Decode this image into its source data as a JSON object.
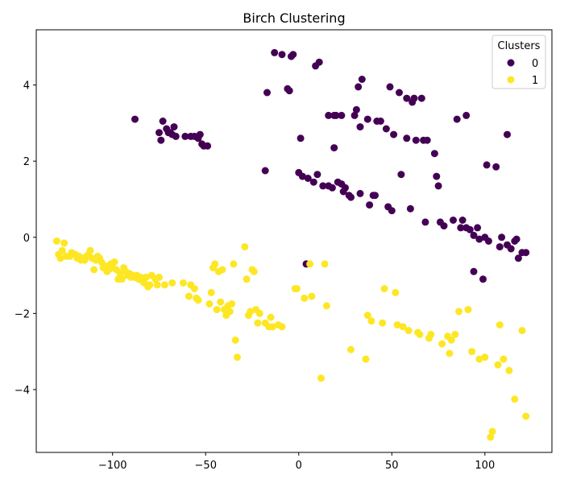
{
  "chart_data": {
    "type": "scatter",
    "title": "Birch Clustering",
    "xlabel": "",
    "ylabel": "",
    "xlim": [
      -141,
      136
    ],
    "ylim": [
      -5.65,
      5.45
    ],
    "x_ticks": [
      -100,
      -50,
      0,
      50,
      100
    ],
    "y_ticks": [
      -4,
      -2,
      0,
      2,
      4
    ],
    "grid": false,
    "legend": {
      "title": "Clusters",
      "placement": "top-right",
      "entries": [
        {
          "label": "0",
          "color": "#440154"
        },
        {
          "label": "1",
          "color": "#fde725"
        }
      ]
    },
    "series": [
      {
        "name": "0",
        "color": "#440154",
        "points": [
          [
            -88,
            3.1
          ],
          [
            -75,
            2.75
          ],
          [
            -74,
            2.55
          ],
          [
            -73,
            3.05
          ],
          [
            -71,
            2.85
          ],
          [
            -70,
            2.75
          ],
          [
            -69,
            2.75
          ],
          [
            -68,
            2.7
          ],
          [
            -67,
            2.9
          ],
          [
            -66,
            2.65
          ],
          [
            -61,
            2.65
          ],
          [
            -58,
            2.65
          ],
          [
            -56,
            2.65
          ],
          [
            -54,
            2.6
          ],
          [
            -53,
            2.7
          ],
          [
            -52,
            2.45
          ],
          [
            -51,
            2.4
          ],
          [
            -49,
            2.4
          ],
          [
            -17,
            3.8
          ],
          [
            -13,
            4.85
          ],
          [
            -9,
            4.8
          ],
          [
            -6,
            3.9
          ],
          [
            -5,
            3.85
          ],
          [
            -4,
            4.75
          ],
          [
            -3,
            4.8
          ],
          [
            9,
            4.5
          ],
          [
            11,
            4.6
          ],
          [
            16,
            3.2
          ],
          [
            19,
            3.2
          ],
          [
            20,
            3.2
          ],
          [
            23,
            3.2
          ],
          [
            30,
            3.2
          ],
          [
            31,
            3.35
          ],
          [
            32,
            3.95
          ],
          [
            33,
            2.9
          ],
          [
            34,
            4.15
          ],
          [
            37,
            3.1
          ],
          [
            42,
            3.05
          ],
          [
            44,
            3.05
          ],
          [
            47,
            2.85
          ],
          [
            49,
            3.95
          ],
          [
            51,
            2.7
          ],
          [
            54,
            3.8
          ],
          [
            58,
            3.65
          ],
          [
            58,
            2.6
          ],
          [
            61,
            3.55
          ],
          [
            62,
            3.65
          ],
          [
            63,
            2.55
          ],
          [
            66,
            3.65
          ],
          [
            67,
            2.55
          ],
          [
            69,
            2.55
          ],
          [
            73,
            2.2
          ],
          [
            85,
            3.1
          ],
          [
            90,
            3.2
          ],
          [
            101,
            1.9
          ],
          [
            106,
            1.85
          ],
          [
            112,
            2.7
          ],
          [
            -18,
            1.75
          ],
          [
            0,
            1.7
          ],
          [
            1,
            2.6
          ],
          [
            2,
            1.6
          ],
          [
            5,
            1.55
          ],
          [
            8,
            1.45
          ],
          [
            10,
            1.65
          ],
          [
            13,
            1.35
          ],
          [
            16,
            1.35
          ],
          [
            18,
            1.3
          ],
          [
            19,
            2.35
          ],
          [
            21,
            1.45
          ],
          [
            23,
            1.4
          ],
          [
            24,
            1.2
          ],
          [
            25,
            1.3
          ],
          [
            27,
            1.1
          ],
          [
            28,
            1.05
          ],
          [
            33,
            1.15
          ],
          [
            38,
            0.85
          ],
          [
            40,
            1.1
          ],
          [
            41,
            1.1
          ],
          [
            48,
            0.8
          ],
          [
            50,
            0.7
          ],
          [
            55,
            1.65
          ],
          [
            60,
            0.75
          ],
          [
            68,
            0.4
          ],
          [
            74,
            1.6
          ],
          [
            75,
            1.35
          ],
          [
            76,
            0.4
          ],
          [
            78,
            0.3
          ],
          [
            83,
            0.45
          ],
          [
            87,
            0.25
          ],
          [
            88,
            0.45
          ],
          [
            90,
            0.25
          ],
          [
            92,
            0.2
          ],
          [
            94,
            0.05
          ],
          [
            96,
            0.25
          ],
          [
            97,
            -0.05
          ],
          [
            100,
            0.0
          ],
          [
            102,
            -0.1
          ],
          [
            108,
            -0.25
          ],
          [
            109,
            0.0
          ],
          [
            112,
            -0.2
          ],
          [
            114,
            -0.3
          ],
          [
            116,
            -0.1
          ],
          [
            117,
            -0.05
          ],
          [
            118,
            -0.55
          ],
          [
            120,
            -0.4
          ],
          [
            122,
            -0.4
          ],
          [
            94,
            -0.9
          ],
          [
            99,
            -1.1
          ],
          [
            4,
            -0.7
          ]
        ]
      },
      {
        "name": "1",
        "color": "#fde725",
        "points": [
          [
            -130,
            -0.1
          ],
          [
            -129,
            -0.45
          ],
          [
            -128,
            -0.55
          ],
          [
            -127,
            -0.35
          ],
          [
            -126,
            -0.15
          ],
          [
            -125,
            -0.5
          ],
          [
            -123,
            -0.5
          ],
          [
            -122,
            -0.4
          ],
          [
            -120,
            -0.45
          ],
          [
            -119,
            -0.55
          ],
          [
            -118,
            -0.5
          ],
          [
            -117,
            -0.6
          ],
          [
            -116,
            -0.55
          ],
          [
            -115,
            -0.6
          ],
          [
            -114,
            -0.5
          ],
          [
            -113,
            -0.45
          ],
          [
            -112,
            -0.35
          ],
          [
            -111,
            -0.55
          ],
          [
            -110,
            -0.85
          ],
          [
            -109,
            -0.6
          ],
          [
            -108,
            -0.5
          ],
          [
            -107,
            -0.55
          ],
          [
            -106,
            -0.65
          ],
          [
            -105,
            -0.8
          ],
          [
            -104,
            -0.75
          ],
          [
            -103,
            -0.9
          ],
          [
            -102,
            -0.85
          ],
          [
            -101,
            -0.7
          ],
          [
            -100,
            -0.8
          ],
          [
            -99,
            -0.65
          ],
          [
            -98,
            -0.85
          ],
          [
            -97,
            -1.1
          ],
          [
            -96,
            -0.95
          ],
          [
            -95,
            -1.1
          ],
          [
            -94,
            -0.8
          ],
          [
            -93,
            -0.9
          ],
          [
            -92,
            -1.0
          ],
          [
            -91,
            -0.95
          ],
          [
            -90,
            -1.05
          ],
          [
            -89,
            -1.0
          ],
          [
            -88,
            -1.05
          ],
          [
            -87,
            -1.0
          ],
          [
            -86,
            -1.1
          ],
          [
            -85,
            -1.05
          ],
          [
            -84,
            -1.15
          ],
          [
            -83,
            -1.2
          ],
          [
            -82,
            -1.05
          ],
          [
            -81,
            -1.3
          ],
          [
            -80,
            -1.25
          ],
          [
            -79,
            -1.0
          ],
          [
            -77,
            -1.1
          ],
          [
            -76,
            -1.25
          ],
          [
            -75,
            -1.05
          ],
          [
            -72,
            -1.25
          ],
          [
            -68,
            -1.2
          ],
          [
            -62,
            -1.2
          ],
          [
            -59,
            -1.55
          ],
          [
            -58,
            -1.25
          ],
          [
            -56,
            -1.35
          ],
          [
            -55,
            -1.6
          ],
          [
            -54,
            -1.65
          ],
          [
            -48,
            -1.75
          ],
          [
            -47,
            -1.45
          ],
          [
            -46,
            -0.8
          ],
          [
            -45,
            -0.7
          ],
          [
            -44,
            -1.9
          ],
          [
            -43,
            -0.9
          ],
          [
            -42,
            -1.7
          ],
          [
            -41,
            -0.85
          ],
          [
            -40,
            -1.9
          ],
          [
            -39,
            -2.05
          ],
          [
            -38,
            -1.8
          ],
          [
            -37,
            -1.95
          ],
          [
            -36,
            -1.75
          ],
          [
            -35,
            -0.7
          ],
          [
            -34,
            -2.7
          ],
          [
            -33,
            -3.15
          ],
          [
            -29,
            -0.25
          ],
          [
            -28,
            -1.1
          ],
          [
            -27,
            -2.05
          ],
          [
            -26,
            -1.95
          ],
          [
            -25,
            -0.85
          ],
          [
            -24,
            -0.9
          ],
          [
            -23,
            -1.9
          ],
          [
            -22,
            -2.25
          ],
          [
            -21,
            -2.0
          ],
          [
            -18,
            -2.25
          ],
          [
            -16,
            -2.35
          ],
          [
            -15,
            -2.1
          ],
          [
            -14,
            -2.35
          ],
          [
            -11,
            -2.3
          ],
          [
            -9,
            -2.35
          ],
          [
            -2,
            -1.35
          ],
          [
            -1,
            -1.35
          ],
          [
            3,
            -1.6
          ],
          [
            6,
            -0.7
          ],
          [
            7,
            -1.55
          ],
          [
            12,
            -3.7
          ],
          [
            14,
            -0.7
          ],
          [
            15,
            -1.8
          ],
          [
            28,
            -2.95
          ],
          [
            36,
            -3.2
          ],
          [
            37,
            -2.05
          ],
          [
            39,
            -2.2
          ],
          [
            45,
            -2.25
          ],
          [
            46,
            -1.35
          ],
          [
            52,
            -1.45
          ],
          [
            53,
            -2.3
          ],
          [
            56,
            -2.35
          ],
          [
            59,
            -2.45
          ],
          [
            64,
            -2.5
          ],
          [
            65,
            -2.55
          ],
          [
            70,
            -2.65
          ],
          [
            71,
            -2.55
          ],
          [
            77,
            -2.8
          ],
          [
            80,
            -2.6
          ],
          [
            81,
            -3.05
          ],
          [
            82,
            -2.7
          ],
          [
            84,
            -2.55
          ],
          [
            86,
            -1.95
          ],
          [
            91,
            -1.9
          ],
          [
            93,
            -3.0
          ],
          [
            97,
            -3.2
          ],
          [
            100,
            -3.15
          ],
          [
            103,
            -5.25
          ],
          [
            104,
            -5.1
          ],
          [
            107,
            -3.35
          ],
          [
            108,
            -2.3
          ],
          [
            110,
            -3.2
          ],
          [
            113,
            -3.5
          ],
          [
            116,
            -4.25
          ],
          [
            120,
            -2.45
          ],
          [
            122,
            -4.7
          ]
        ]
      }
    ]
  }
}
